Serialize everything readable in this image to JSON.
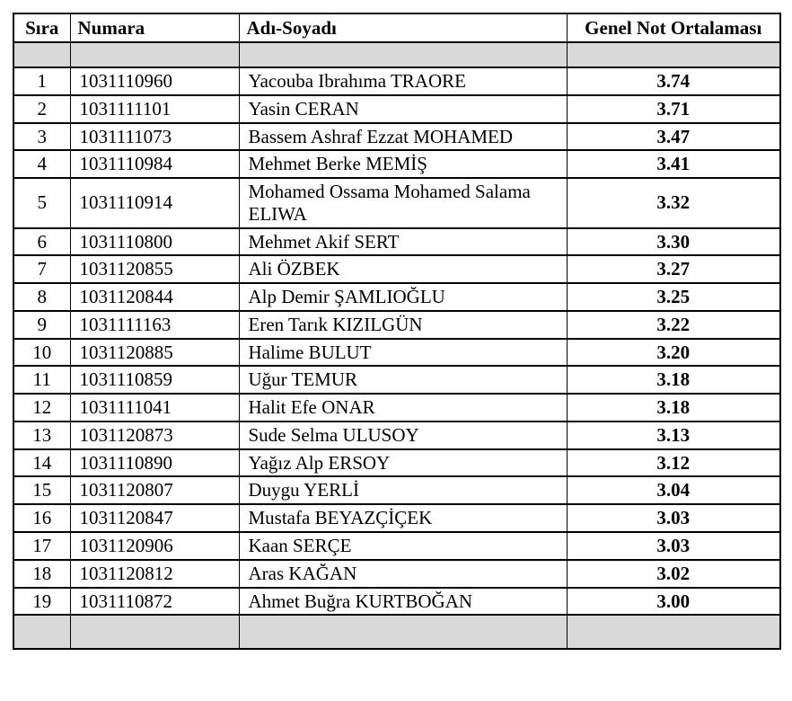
{
  "table": {
    "headers": [
      "Sıra",
      "Numara",
      "Adı-Soyadı",
      "Genel Not Ortalaması"
    ],
    "rows": [
      {
        "sira": "1",
        "numara": "1031110960",
        "ad": "Yacouba Ibrahıma TRAORE",
        "gno": "3.74"
      },
      {
        "sira": "2",
        "numara": "1031111101",
        "ad": "Yasin CERAN",
        "gno": "3.71"
      },
      {
        "sira": "3",
        "numara": "1031111073",
        "ad": "Bassem Ashraf Ezzat MOHAMED",
        "gno": "3.47"
      },
      {
        "sira": "4",
        "numara": "1031110984",
        "ad": "Mehmet Berke MEMİŞ",
        "gno": "3.41"
      },
      {
        "sira": "5",
        "numara": "1031110914",
        "ad": "Mohamed Ossama Mohamed Salama ELIWA",
        "gno": "3.32"
      },
      {
        "sira": "6",
        "numara": "1031110800",
        "ad": "Mehmet Akif SERT",
        "gno": "3.30"
      },
      {
        "sira": "7",
        "numara": "1031120855",
        "ad": "Ali ÖZBEK",
        "gno": "3.27"
      },
      {
        "sira": "8",
        "numara": "1031120844",
        "ad": "Alp Demir ŞAMLIOĞLU",
        "gno": "3.25"
      },
      {
        "sira": "9",
        "numara": "1031111163",
        "ad": "Eren Tarık KIZILGÜN",
        "gno": "3.22"
      },
      {
        "sira": "10",
        "numara": "1031120885",
        "ad": "Halime BULUT",
        "gno": "3.20"
      },
      {
        "sira": "11",
        "numara": "1031110859",
        "ad": "Uğur TEMUR",
        "gno": "3.18"
      },
      {
        "sira": "12",
        "numara": "1031111041",
        "ad": "Halit Efe ONAR",
        "gno": "3.18"
      },
      {
        "sira": "13",
        "numara": "1031120873",
        "ad": "Sude Selma ULUSOY",
        "gno": "3.13"
      },
      {
        "sira": "14",
        "numara": "1031110890",
        "ad": "Yağız Alp ERSOY",
        "gno": "3.12"
      },
      {
        "sira": "15",
        "numara": "1031120807",
        "ad": "Duygu YERLİ",
        "gno": "3.04"
      },
      {
        "sira": "16",
        "numara": "1031120847",
        "ad": "Mustafa BEYAZÇİÇEK",
        "gno": "3.03"
      },
      {
        "sira": "17",
        "numara": "1031120906",
        "ad": "Kaan SERÇE",
        "gno": "3.03"
      },
      {
        "sira": "18",
        "numara": "1031120812",
        "ad": "Aras KAĞAN",
        "gno": "3.02"
      },
      {
        "sira": "19",
        "numara": "1031110872",
        "ad": "Ahmet Buğra KURTBOĞAN",
        "gno": "3.00"
      }
    ],
    "colors": {
      "shaded_row": "#d9d9d9",
      "border": "#000000",
      "text": "#000000",
      "page_background": "#ffffff"
    }
  }
}
